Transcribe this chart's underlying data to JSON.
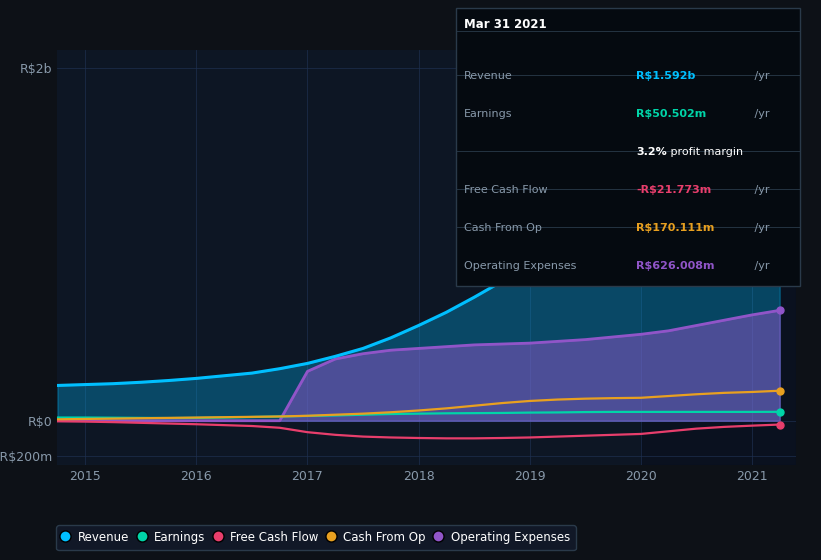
{
  "bg_color": "#0d1117",
  "plot_bg_color": "#0d1624",
  "grid_color": "#1e3050",
  "years": [
    2014.75,
    2015.0,
    2015.25,
    2015.5,
    2015.75,
    2016.0,
    2016.25,
    2016.5,
    2016.75,
    2017.0,
    2017.25,
    2017.5,
    2017.75,
    2018.0,
    2018.25,
    2018.5,
    2018.75,
    2019.0,
    2019.25,
    2019.5,
    2019.75,
    2020.0,
    2020.25,
    2020.5,
    2020.75,
    2021.0,
    2021.25
  ],
  "revenue": [
    200,
    205,
    210,
    218,
    228,
    240,
    255,
    270,
    295,
    325,
    365,
    410,
    470,
    540,
    615,
    700,
    790,
    890,
    990,
    1100,
    1220,
    1340,
    1430,
    1490,
    1530,
    1565,
    1592
  ],
  "earnings": [
    18,
    18,
    17,
    16,
    15,
    16,
    18,
    21,
    24,
    27,
    30,
    34,
    38,
    40,
    42,
    43,
    44,
    46,
    47,
    49,
    50,
    50,
    50,
    50,
    50,
    50,
    50.502
  ],
  "free_cash_flow": [
    -3,
    -5,
    -8,
    -12,
    -16,
    -20,
    -25,
    -30,
    -40,
    -65,
    -80,
    -90,
    -95,
    -98,
    -100,
    -100,
    -98,
    -95,
    -90,
    -85,
    -80,
    -75,
    -60,
    -45,
    -35,
    -28,
    -21.773
  ],
  "cash_from_op": [
    8,
    10,
    12,
    14,
    16,
    18,
    20,
    22,
    24,
    28,
    34,
    40,
    48,
    58,
    70,
    85,
    100,
    112,
    120,
    125,
    128,
    130,
    140,
    150,
    158,
    163,
    170.111
  ],
  "operating_expenses": [
    0,
    0,
    0,
    0,
    0,
    0,
    0,
    0,
    0,
    280,
    350,
    380,
    400,
    410,
    420,
    430,
    435,
    440,
    450,
    460,
    475,
    490,
    510,
    540,
    570,
    600,
    626.008
  ],
  "revenue_color": "#00bfff",
  "earnings_color": "#00d4a8",
  "free_cash_flow_color": "#e83e6c",
  "cash_from_op_color": "#e8a020",
  "operating_expenses_color": "#9055c8",
  "xlim": [
    2014.75,
    2021.4
  ],
  "ylim": [
    -250,
    2100
  ],
  "yticks": [
    -200,
    0,
    2000
  ],
  "ytick_labels": [
    "-R$200m",
    "R$0",
    "R$2b"
  ],
  "xtick_years": [
    2015,
    2016,
    2017,
    2018,
    2019,
    2020,
    2021
  ],
  "info_box": {
    "date": "Mar 31 2021",
    "rows": [
      {
        "label": "Revenue",
        "value": "R$1.592b",
        "value_color": "#00bfff",
        "suffix": " /yr"
      },
      {
        "label": "Earnings",
        "value": "R$50.502m",
        "value_color": "#00d4a8",
        "suffix": " /yr"
      },
      {
        "label": "",
        "value": "3.2%",
        "value_color": "#ffffff",
        "suffix": " profit margin",
        "suffix_color": "#ffffff"
      },
      {
        "label": "Free Cash Flow",
        "value": "-R$21.773m",
        "value_color": "#e83e6c",
        "suffix": " /yr"
      },
      {
        "label": "Cash From Op",
        "value": "R$170.111m",
        "value_color": "#e8a020",
        "suffix": " /yr"
      },
      {
        "label": "Operating Expenses",
        "value": "R$626.008m",
        "value_color": "#9055c8",
        "suffix": " /yr"
      }
    ]
  },
  "legend_labels": [
    "Revenue",
    "Earnings",
    "Free Cash Flow",
    "Cash From Op",
    "Operating Expenses"
  ],
  "legend_colors": [
    "#00bfff",
    "#00d4a8",
    "#e83e6c",
    "#e8a020",
    "#9055c8"
  ],
  "shaded_region_start": 2020.0,
  "shaded_region_end": 2021.4
}
